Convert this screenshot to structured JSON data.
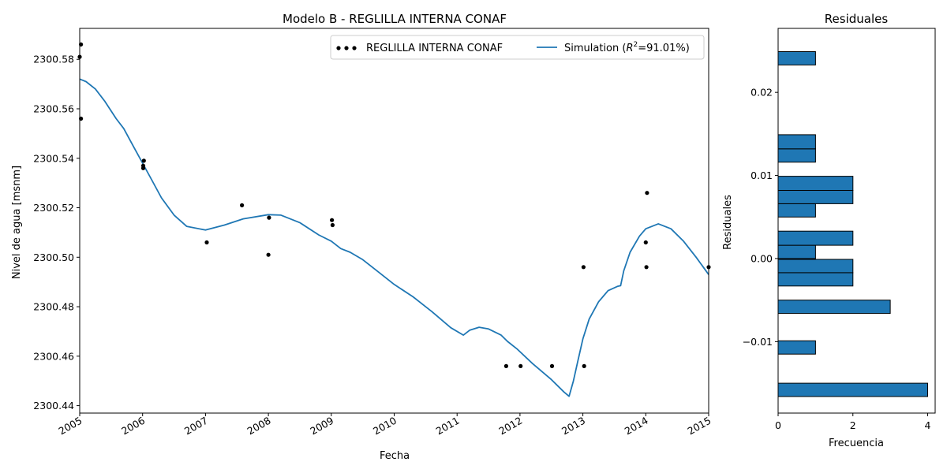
{
  "chart_data": [
    {
      "type": "line",
      "title": "Modelo B - REGLILLA INTERNA CONAF",
      "xlabel": "Fecha",
      "ylabel": "Nivel de agua [msnm]",
      "xlim": [
        2005.0,
        2015.0
      ],
      "ylim": [
        2300.437,
        2300.5925
      ],
      "x_ticks": [
        2005,
        2006,
        2007,
        2008,
        2009,
        2010,
        2011,
        2012,
        2013,
        2014,
        2015
      ],
      "y_ticks": [
        2300.44,
        2300.46,
        2300.48,
        2300.5,
        2300.52,
        2300.54,
        2300.56,
        2300.58
      ],
      "grid": false,
      "legend": {
        "placement": "upper-right",
        "entries": [
          {
            "label": "REGLILLA INTERNA CONAF",
            "marker": "dots"
          },
          {
            "label": "Simulation ($R^2$=91.01%)",
            "marker": "line"
          }
        ]
      },
      "series": [
        {
          "name": "REGLILLA INTERNA CONAF",
          "type": "scatter",
          "color": "#000000",
          "points": [
            [
              2005.0,
              2300.581
            ],
            [
              2005.02,
              2300.586
            ],
            [
              2005.02,
              2300.556
            ],
            [
              2006.01,
              2300.536
            ],
            [
              2006.01,
              2300.537
            ],
            [
              2006.02,
              2300.539
            ],
            [
              2007.02,
              2300.506
            ],
            [
              2007.58,
              2300.521
            ],
            [
              2008.0,
              2300.501
            ],
            [
              2008.01,
              2300.516
            ],
            [
              2009.01,
              2300.515
            ],
            [
              2009.02,
              2300.513
            ],
            [
              2011.78,
              2300.456
            ],
            [
              2012.01,
              2300.456
            ],
            [
              2012.51,
              2300.456
            ],
            [
              2013.01,
              2300.496
            ],
            [
              2013.02,
              2300.456
            ],
            [
              2014.0,
              2300.506
            ],
            [
              2014.01,
              2300.496
            ],
            [
              2014.02,
              2300.526
            ],
            [
              2015.0,
              2300.496
            ]
          ]
        },
        {
          "name": "Simulation ($R^2$=91.01%)",
          "type": "line",
          "color": "#1f77b4",
          "points": [
            [
              2005.0,
              2300.572
            ],
            [
              2005.1,
              2300.571
            ],
            [
              2005.25,
              2300.568
            ],
            [
              2005.4,
              2300.563
            ],
            [
              2005.58,
              2300.556
            ],
            [
              2005.7,
              2300.552
            ],
            [
              2005.85,
              2300.545
            ],
            [
              2006.0,
              2300.538
            ],
            [
              2006.15,
              2300.531
            ],
            [
              2006.3,
              2300.524
            ],
            [
              2006.5,
              2300.517
            ],
            [
              2006.7,
              2300.5125
            ],
            [
              2007.0,
              2300.511
            ],
            [
              2007.3,
              2300.513
            ],
            [
              2007.6,
              2300.5155
            ],
            [
              2008.0,
              2300.5172
            ],
            [
              2008.2,
              2300.517
            ],
            [
              2008.5,
              2300.514
            ],
            [
              2008.8,
              2300.509
            ],
            [
              2009.0,
              2300.5065
            ],
            [
              2009.15,
              2300.5035
            ],
            [
              2009.3,
              2300.502
            ],
            [
              2009.5,
              2300.499
            ],
            [
              2009.75,
              2300.494
            ],
            [
              2010.0,
              2300.489
            ],
            [
              2010.3,
              2300.484
            ],
            [
              2010.6,
              2300.478
            ],
            [
              2010.9,
              2300.4715
            ],
            [
              2011.1,
              2300.4685
            ],
            [
              2011.2,
              2300.4705
            ],
            [
              2011.35,
              2300.4717
            ],
            [
              2011.5,
              2300.471
            ],
            [
              2011.7,
              2300.4685
            ],
            [
              2011.8,
              2300.466
            ],
            [
              2011.95,
              2300.463
            ],
            [
              2012.2,
              2300.457
            ],
            [
              2012.5,
              2300.4505
            ],
            [
              2012.7,
              2300.4455
            ],
            [
              2012.78,
              2300.4438
            ],
            [
              2012.85,
              2300.45
            ],
            [
              2012.92,
              2300.458
            ],
            [
              2013.0,
              2300.467
            ],
            [
              2013.1,
              2300.475
            ],
            [
              2013.25,
              2300.482
            ],
            [
              2013.4,
              2300.4865
            ],
            [
              2013.55,
              2300.4882
            ],
            [
              2013.6,
              2300.4885
            ],
            [
              2013.65,
              2300.4945
            ],
            [
              2013.75,
              2300.502
            ],
            [
              2013.9,
              2300.5085
            ],
            [
              2014.0,
              2300.5115
            ],
            [
              2014.2,
              2300.5135
            ],
            [
              2014.4,
              2300.5115
            ],
            [
              2014.6,
              2300.5065
            ],
            [
              2014.8,
              2300.5
            ],
            [
              2015.0,
              2300.493
            ]
          ]
        }
      ]
    },
    {
      "type": "bar",
      "orientation": "horizontal",
      "title": "Residuales",
      "xlabel": "Frecuencia",
      "ylabel": "Residuales",
      "xlim": [
        0,
        4.2
      ],
      "ylim": [
        -0.0186,
        0.0277
      ],
      "x_ticks": [
        0,
        2,
        4
      ],
      "y_ticks": [
        -0.01,
        0.0,
        0.01,
        0.02
      ],
      "y_tick_labels": [
        "−0.01",
        "0.00",
        "0.01",
        "0.02"
      ],
      "grid": false,
      "color": "#1f77b4",
      "edge_color": "#000000",
      "bins": [
        {
          "y0": -0.0166,
          "y1": -0.015,
          "count": 4
        },
        {
          "y0": -0.0115,
          "y1": -0.0099,
          "count": 1
        },
        {
          "y0": -0.0066,
          "y1": -0.005,
          "count": 3
        },
        {
          "y0": -0.0033,
          "y1": -0.0017,
          "count": 2
        },
        {
          "y0": -0.0017,
          "y1": -0.0001,
          "count": 2
        },
        {
          "y0": 0.0,
          "y1": 0.0016,
          "count": 1
        },
        {
          "y0": 0.0016,
          "y1": 0.0033,
          "count": 2
        },
        {
          "y0": 0.005,
          "y1": 0.0066,
          "count": 1
        },
        {
          "y0": 0.0066,
          "y1": 0.0082,
          "count": 2
        },
        {
          "y0": 0.0082,
          "y1": 0.0099,
          "count": 2
        },
        {
          "y0": 0.0116,
          "y1": 0.0132,
          "count": 1
        },
        {
          "y0": 0.0132,
          "y1": 0.0149,
          "count": 1
        },
        {
          "y0": 0.0233,
          "y1": 0.0249,
          "count": 1
        }
      ]
    }
  ]
}
